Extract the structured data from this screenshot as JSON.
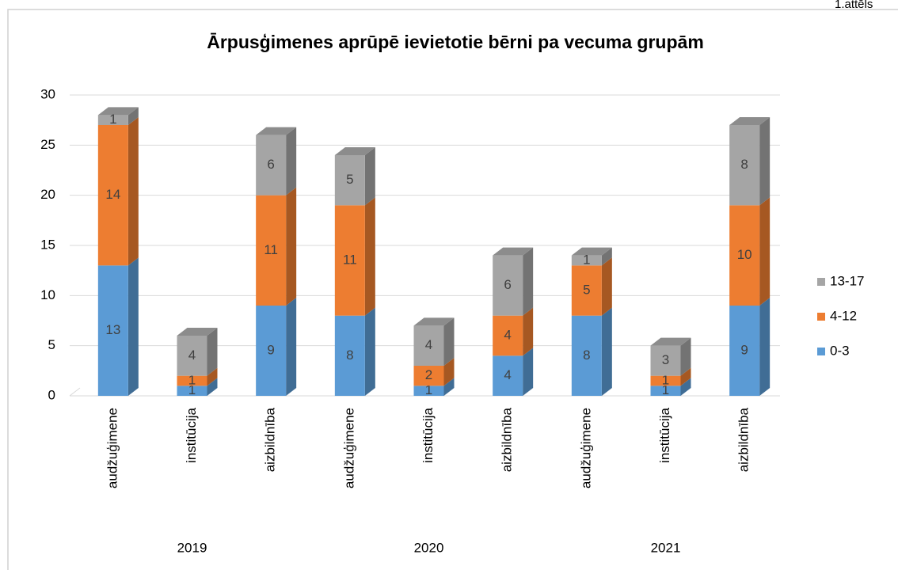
{
  "chart_data": {
    "type": "bar3d_stacked",
    "title": "Ārpusģimenes aprūpē ievietotie bērni pa vecuma grupām",
    "figure_label": "1.attēls",
    "categories": [
      "audžuģimene",
      "institūcija",
      "aizbildnība",
      "audžuģimene",
      "institūcija",
      "aizbildnība",
      "audžuģimene",
      "institūcija",
      "aizbildnība"
    ],
    "groups": [
      "2019",
      "2020",
      "2021"
    ],
    "series": [
      {
        "name": "0-3",
        "color": "#5b9bd5",
        "values": [
          13,
          1,
          9,
          8,
          1,
          4,
          8,
          1,
          9
        ]
      },
      {
        "name": "4-12",
        "color": "#ed7d31",
        "values": [
          14,
          1,
          11,
          11,
          2,
          4,
          5,
          1,
          10
        ]
      },
      {
        "name": "13-17",
        "color": "#a5a5a5",
        "values": [
          1,
          4,
          6,
          5,
          4,
          6,
          1,
          3,
          8
        ]
      }
    ],
    "ylim": [
      0,
      30
    ],
    "yticks": [
      0,
      5,
      10,
      15,
      20,
      25,
      30
    ],
    "grid": true,
    "legend": "right"
  }
}
